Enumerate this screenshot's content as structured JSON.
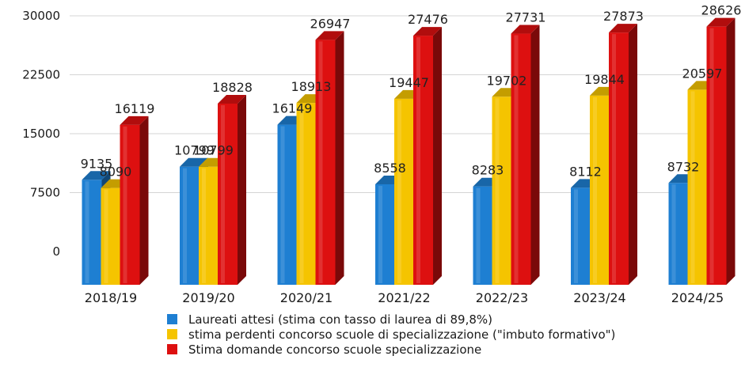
{
  "chart_data": {
    "type": "bar",
    "title": "",
    "xlabel": "",
    "ylabel": "",
    "ylim": [
      0,
      30000
    ],
    "yticks": [
      0,
      7500,
      15000,
      22500,
      30000
    ],
    "grid": true,
    "legend_position": "bottom",
    "categories": [
      "2018/19",
      "2019/20",
      "2020/21",
      "2021/22",
      "2022/23",
      "2023/24",
      "2024/25"
    ],
    "series": [
      {
        "name": "Laureati attesi (stima con tasso di laurea di 89,8%)",
        "color": "#1e7fd2",
        "values": [
          9135,
          10799,
          16149,
          8558,
          8283,
          8112,
          8732
        ],
        "labels": [
          "9135",
          "10799",
          "16149",
          "8558",
          "8283",
          "8112",
          "8732"
        ]
      },
      {
        "name": "stima perdenti concorso scuole di specializzazione (\"imbuto formativo\")",
        "color": "#f5c400",
        "values": [
          8090,
          10799,
          18913,
          19447,
          19702,
          19844,
          20597
        ],
        "labels": [
          "8090",
          "10799",
          "18913",
          "19447",
          "19702",
          "19844",
          "20597"
        ]
      },
      {
        "name": "Stima domande concorso scuole specializzazione",
        "color": "#dd1010",
        "values": [
          16119,
          18828,
          26947,
          27476,
          27731,
          27873,
          28626
        ],
        "labels": [
          "16119",
          "18828",
          "26947",
          "27476",
          "27731",
          "27873",
          "28626"
        ]
      }
    ]
  }
}
